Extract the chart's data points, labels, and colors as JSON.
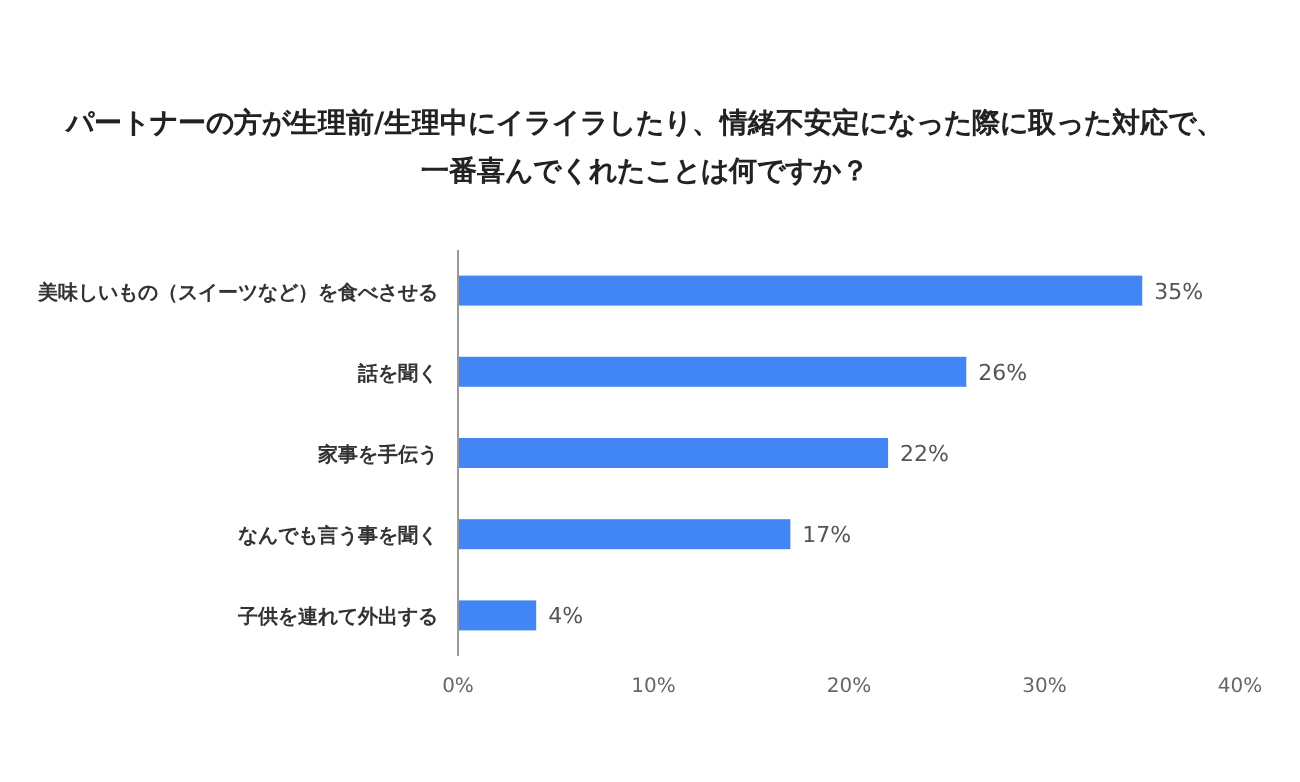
{
  "chart_data": {
    "type": "bar",
    "orientation": "horizontal",
    "title": "パートナーの方が生理前/生理中にイライラしたり、情緒不安定になった際に取った対応で、一番喜んでくれたことは何ですか？",
    "categories": [
      "美味しいもの（スイーツなど）を食べさせる",
      "話を聞く",
      "家事を手伝う",
      "なんでも言う事を聞く",
      "子供を連れて外出する"
    ],
    "values": [
      35,
      26,
      22,
      17,
      4
    ],
    "value_labels": [
      "35%",
      "26%",
      "22%",
      "17%",
      "4%"
    ],
    "color": "#4285f4",
    "xlim": [
      0,
      40
    ],
    "xticks": [
      {
        "value": 0,
        "label": "0%"
      },
      {
        "value": 10,
        "label": "10%"
      },
      {
        "value": 20,
        "label": "20%"
      },
      {
        "value": 30,
        "label": "30%"
      },
      {
        "value": 40,
        "label": "40%"
      }
    ]
  }
}
